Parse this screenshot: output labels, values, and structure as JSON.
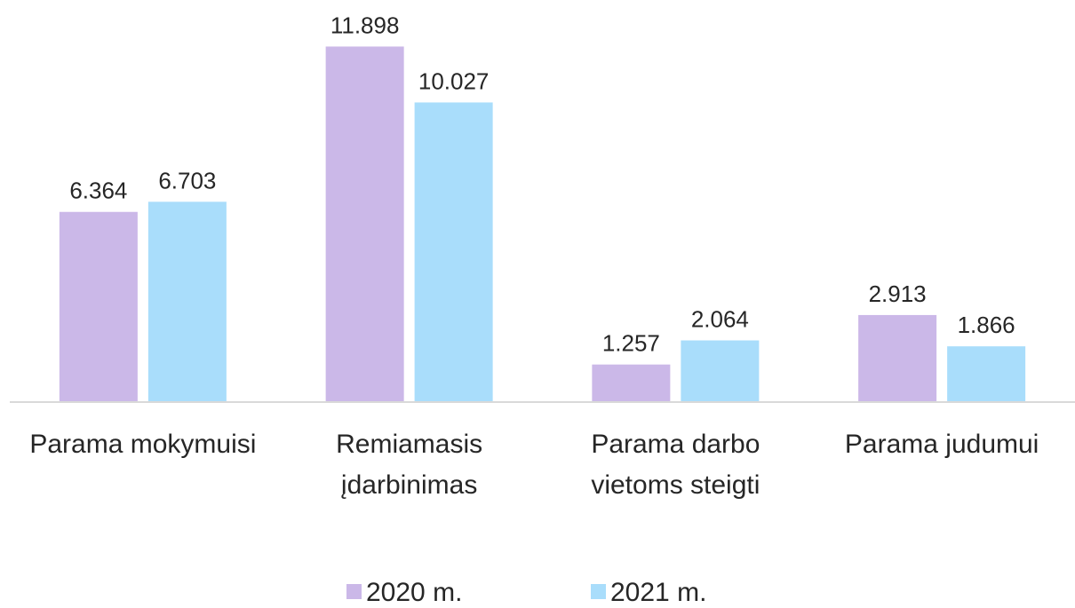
{
  "chart_data": {
    "type": "bar",
    "categories": [
      "Parama mokymuisi",
      "Remiamasis įdarbinimas",
      "Parama darbo vietoms steigti",
      "Parama judumui"
    ],
    "series": [
      {
        "name": "2020 m.",
        "color": "#cbb8e8",
        "values": [
          6.364,
          11.898,
          1.257,
          2.913
        ]
      },
      {
        "name": "2021 m.",
        "color": "#a9ddfb",
        "values": [
          6.703,
          10.027,
          2.064,
          1.866
        ]
      }
    ],
    "ylim": [
      0,
      12
    ],
    "legend": "bottom"
  }
}
